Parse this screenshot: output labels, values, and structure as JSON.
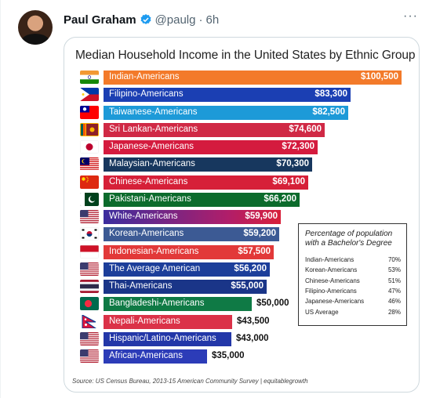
{
  "tweet": {
    "author_name": "Paul Graham",
    "handle": "@paulg",
    "separator": "·",
    "time": "6h",
    "more": "···"
  },
  "chart_data": {
    "type": "bar",
    "orientation": "horizontal",
    "title": "Median Household Income in the United States  by Ethnic Group",
    "xlim": [
      0,
      100500
    ],
    "categories": [
      "Indian-Americans",
      "Filipino-Americans",
      "Taiwanese-Americans",
      "Sri Lankan-Americans",
      "Japanese-Americans",
      "Malaysian-Americans",
      "Chinese-Americans",
      "Pakistani-Americans",
      "White-Americans",
      "Korean-Americans",
      "Indonesian-Americans",
      "The Average American",
      "Thai-Americans",
      "Bangladeshi-Americans",
      "Nepali-Americans",
      "Hispanic/Latino-Americans",
      "African-Americans"
    ],
    "values": [
      100500,
      83300,
      82500,
      74600,
      72300,
      70300,
      69100,
      66200,
      59900,
      59200,
      57500,
      56200,
      55000,
      50000,
      43500,
      43000,
      35000
    ],
    "value_labels": [
      "$100,500",
      "$83,300",
      "$82,500",
      "$74,600",
      "$72,300",
      "$70,300",
      "$69,100",
      "$66,200",
      "$59,900",
      "$59,200",
      "$57,500",
      "$56,200",
      "$55,000",
      "$50,000",
      "$43,500",
      "$43,000",
      "$35,000"
    ],
    "bar_colors": [
      "#f37a2a",
      "#1b3fb3",
      "#1d9ad8",
      "#d02945",
      "#d41b3e",
      "#17375e",
      "#d62038",
      "#0c6b2c",
      "#8b1fa0",
      "#3c5a94",
      "#e23939",
      "#1c3e9a",
      "#1a3588",
      "#0f7a45",
      "#db3248",
      "#2337a8",
      "#2c3cb8"
    ],
    "flags": [
      "india",
      "philippines",
      "taiwan",
      "sri-lanka",
      "japan",
      "malaysia",
      "china",
      "pakistan",
      "usa",
      "korea",
      "indonesia",
      "usa",
      "thailand",
      "bangladesh",
      "nepal",
      "usa",
      "usa"
    ],
    "legend": {
      "title": "Percentage of population with a Bachelor's Degree",
      "rows": [
        {
          "label": "Indian-Americans",
          "value": "70%"
        },
        {
          "label": "Korean-Americans",
          "value": "53%"
        },
        {
          "label": "Chinese-Americans",
          "value": "51%"
        },
        {
          "label": "Filipino-Americans",
          "value": "47%"
        },
        {
          "label": "Japanese-Americans",
          "value": "46%"
        },
        {
          "label": "US Average",
          "value": "28%"
        }
      ]
    },
    "source": "Source: US Census Bureau, 2013-15 American Community Survey | equitablegrowth"
  }
}
